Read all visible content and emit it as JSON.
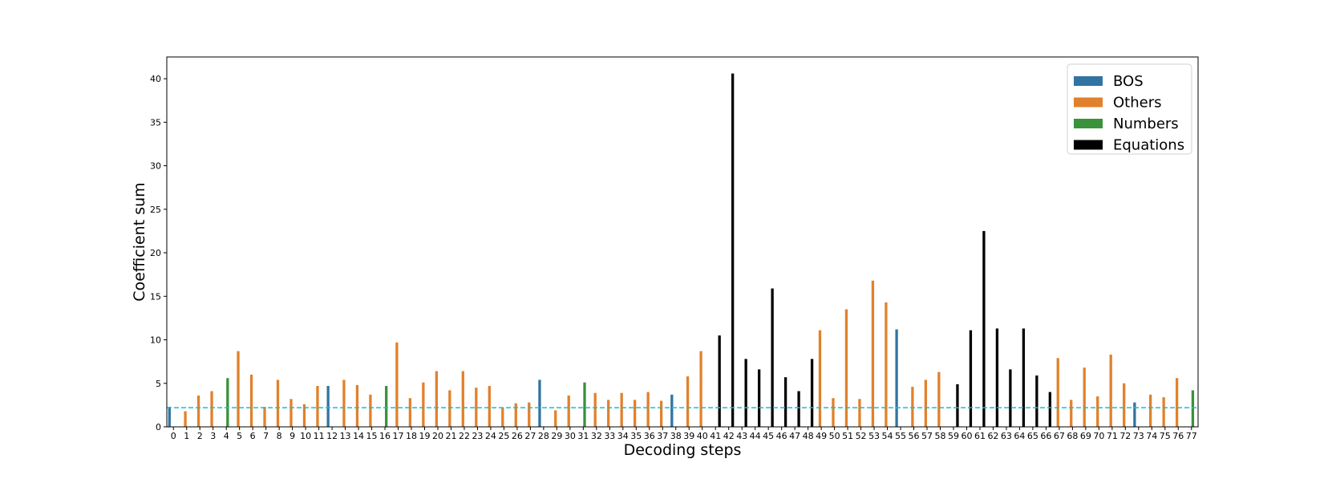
{
  "chart_data": {
    "type": "bar",
    "xlabel": "Decoding steps",
    "ylabel": "Coefficient sum",
    "ylim": [
      0,
      42.5
    ],
    "yticks": [
      0,
      5,
      10,
      15,
      20,
      25,
      30,
      35,
      40
    ],
    "x": [
      0,
      1,
      2,
      3,
      4,
      5,
      6,
      7,
      8,
      9,
      10,
      11,
      12,
      13,
      14,
      15,
      16,
      17,
      18,
      19,
      20,
      21,
      22,
      23,
      24,
      25,
      26,
      27,
      28,
      29,
      30,
      31,
      32,
      33,
      34,
      35,
      36,
      37,
      38,
      39,
      40,
      41,
      42,
      43,
      44,
      45,
      46,
      47,
      48,
      49,
      50,
      51,
      52,
      53,
      54,
      55,
      56,
      57,
      58,
      59,
      60,
      61,
      62,
      63,
      64,
      65,
      66,
      67,
      68,
      69,
      70,
      71,
      72,
      73,
      74,
      75,
      76,
      77
    ],
    "values": [
      2.3,
      1.8,
      3.6,
      4.1,
      5.6,
      8.7,
      6.0,
      2.3,
      5.4,
      3.2,
      2.6,
      4.7,
      4.7,
      5.4,
      4.8,
      3.7,
      4.7,
      9.7,
      3.3,
      5.1,
      6.4,
      4.2,
      6.4,
      4.5,
      4.7,
      2.2,
      2.7,
      2.8,
      5.4,
      1.9,
      3.6,
      5.1,
      3.9,
      3.1,
      3.9,
      3.1,
      4.0,
      3.0,
      3.7,
      5.8,
      8.7,
      10.5,
      40.6,
      7.8,
      6.6,
      15.9,
      5.7,
      4.1,
      7.8,
      11.1,
      3.3,
      13.5,
      3.2,
      16.8,
      14.3,
      11.2,
      4.6,
      5.4,
      6.3,
      4.9,
      11.1,
      22.5,
      11.3,
      6.6,
      11.3,
      5.9,
      4.0,
      7.9,
      3.1,
      6.8,
      3.5,
      8.3,
      5.0,
      2.8,
      3.7,
      3.4,
      5.6,
      4.2
    ],
    "categories_of_bars": [
      "BOS",
      "Others",
      "Others",
      "Others",
      "Numbers",
      "Others",
      "Others",
      "Others",
      "Others",
      "Others",
      "Others",
      "Others",
      "BOS",
      "Others",
      "Others",
      "Others",
      "Numbers",
      "Others",
      "Others",
      "Others",
      "Others",
      "Others",
      "Others",
      "Others",
      "Others",
      "Others",
      "Others",
      "Others",
      "BOS",
      "Others",
      "Others",
      "Numbers",
      "Others",
      "Others",
      "Others",
      "Others",
      "Others",
      "Others",
      "BOS",
      "Others",
      "Others",
      "Equations",
      "Equations",
      "Equations",
      "Equations",
      "Equations",
      "Equations",
      "Equations",
      "Equations",
      "Others",
      "Others",
      "Others",
      "Others",
      "Others",
      "Others",
      "BOS",
      "Others",
      "Others",
      "Others",
      "Equations",
      "Equations",
      "Equations",
      "Equations",
      "Equations",
      "Equations",
      "Equations",
      "Equations",
      "Others",
      "Others",
      "Others",
      "Others",
      "Others",
      "Others",
      "BOS",
      "Others",
      "Others",
      "Others",
      "Numbers"
    ],
    "series": [
      {
        "name": "BOS",
        "color": "#3274a1"
      },
      {
        "name": "Others",
        "color": "#e1812c"
      },
      {
        "name": "Numbers",
        "color": "#3a923a"
      },
      {
        "name": "Equations",
        "color": "#000000"
      }
    ],
    "threshold": 2.2,
    "threshold_color": "#17becf",
    "legend_position": "top-right"
  }
}
